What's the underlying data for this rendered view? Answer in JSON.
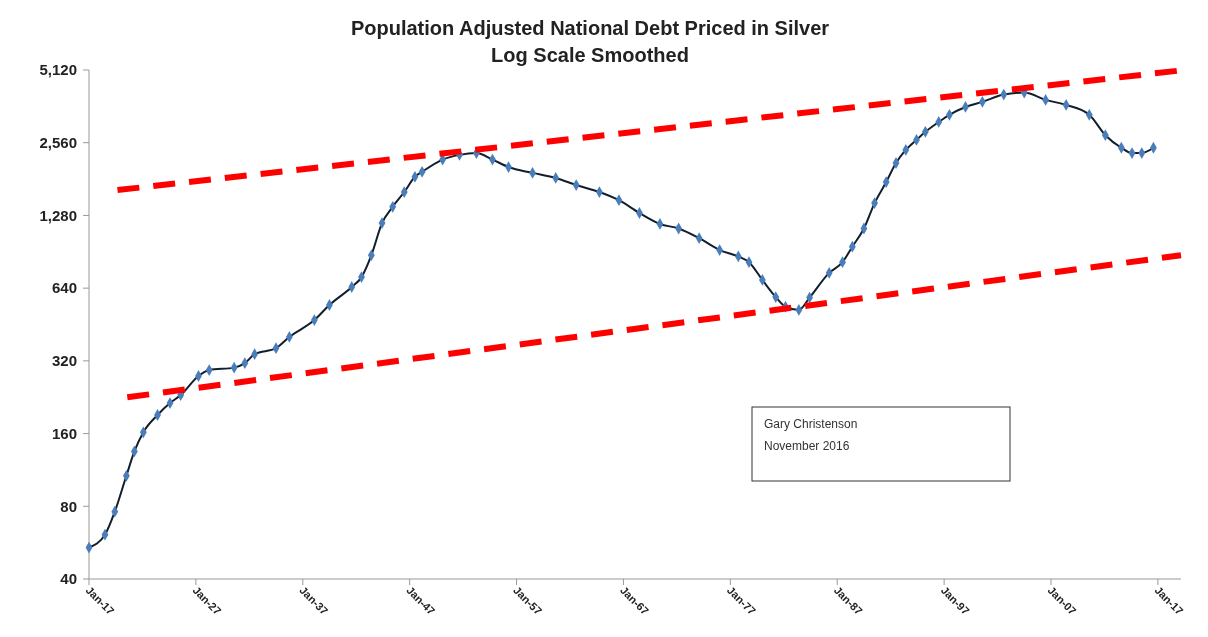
{
  "chart_data": {
    "type": "line",
    "title": "Population Adjusted National Debt Priced in Silver",
    "subtitle": "Log Scale Smoothed",
    "log": true,
    "grid": false,
    "xlim": [
      "1917-01",
      "2019-03"
    ],
    "xticks": [
      {
        "value": "1917-01",
        "label": "Jan-17"
      },
      {
        "value": "1927-01",
        "label": "Jan-27"
      },
      {
        "value": "1937-01",
        "label": "Jan-37"
      },
      {
        "value": "1947-01",
        "label": "Jan-47"
      },
      {
        "value": "1957-01",
        "label": "Jan-57"
      },
      {
        "value": "1967-01",
        "label": "Jan-67"
      },
      {
        "value": "1977-01",
        "label": "Jan-77"
      },
      {
        "value": "1987-01",
        "label": "Jan-87"
      },
      {
        "value": "1997-01",
        "label": "Jan-97"
      },
      {
        "value": "2007-01",
        "label": "Jan-07"
      },
      {
        "value": "2017-01",
        "label": "Jan-17"
      }
    ],
    "ylim": [
      40,
      5120
    ],
    "yticks": [
      40,
      80,
      160,
      320,
      640,
      {
        "value": 1280,
        "label": "1,280"
      },
      {
        "value": 2560,
        "label": "2,560"
      },
      {
        "value": 5120,
        "label": "5,120"
      }
    ],
    "annotations": [
      "Gary Christenson",
      "November 2016"
    ],
    "series": [
      {
        "color": "#4a7ebb",
        "marker": "diamond",
        "line_style": "solid",
        "x": [
          "1917-01",
          "1918-07",
          "1919-06",
          "1920-07",
          "1921-04",
          "1922-02",
          "1923-06",
          "1924-08",
          "1925-08",
          "1927-04",
          "1928-04",
          "1930-08",
          "1931-08",
          "1932-07",
          "1934-07",
          "1935-10",
          "1938-02",
          "1939-07",
          "1941-08",
          "1942-07",
          "1943-06",
          "1944-06",
          "1945-06",
          "1946-07",
          "1947-07",
          "1948-03",
          "1950-02",
          "1951-09",
          "1953-04",
          "1954-10",
          "1956-04",
          "1958-07",
          "1960-09",
          "1962-08",
          "1964-10",
          "1966-08",
          "1968-07",
          "1970-06",
          "1972-03",
          "1974-02",
          "1976-01",
          "1977-10",
          "1978-10",
          "1980-01",
          "1981-04",
          "1982-03",
          "1983-06",
          "1984-06",
          "1986-04",
          "1987-07",
          "1988-06",
          "1989-07",
          "1990-07",
          "1991-08",
          "1992-07",
          "1993-06",
          "1994-06",
          "1995-04",
          "1996-07",
          "1997-07",
          "1999-01",
          "2000-08",
          "2002-08",
          "2004-07",
          "2006-07",
          "2008-06",
          "2010-08",
          "2012-02",
          "2013-08",
          "2014-08",
          "2015-07",
          "2016-08"
        ],
        "values": [
          54,
          61,
          76,
          107,
          135,
          162,
          191,
          214,
          231,
          277,
          293,
          300,
          313,
          341,
          361,
          402,
          472,
          545,
          647,
          711,
          875,
          1190,
          1390,
          1600,
          1850,
          1940,
          2180,
          2280,
          2320,
          2180,
          2030,
          1920,
          1830,
          1710,
          1600,
          1480,
          1310,
          1180,
          1130,
          1030,
          920,
          866,
          820,
          692,
          588,
          536,
          520,
          585,
          740,
          820,
          950,
          1130,
          1440,
          1760,
          2110,
          2390,
          2630,
          2840,
          3120,
          3340,
          3600,
          3780,
          4050,
          4130,
          3850,
          3670,
          3340,
          2750,
          2440,
          2320,
          2320,
          2440
        ]
      },
      {
        "color": "#ff0000",
        "marker": "none",
        "line_style": "dashed",
        "x": [
          "1919-09",
          "2019-03"
        ],
        "values": [
          1630,
          5100
        ]
      },
      {
        "color": "#ff0000",
        "marker": "none",
        "line_style": "dashed",
        "x": [
          "1920-08",
          "2019-03"
        ],
        "values": [
          226,
          876
        ]
      }
    ]
  }
}
